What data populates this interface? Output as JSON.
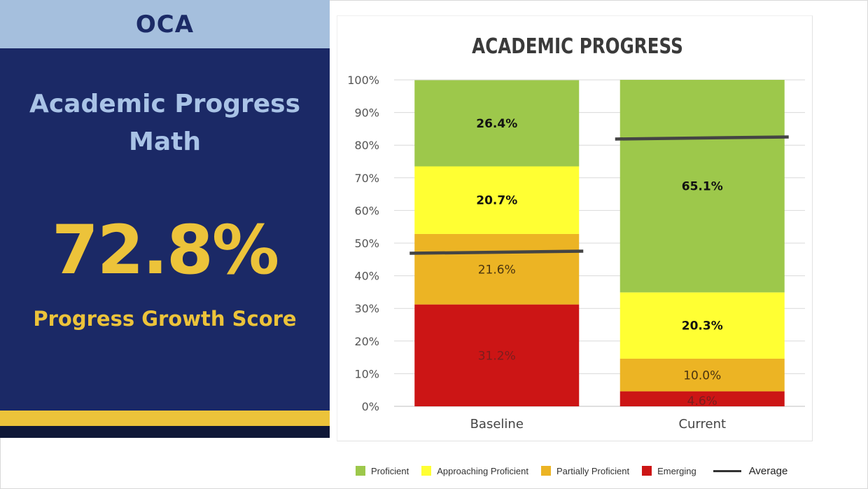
{
  "left_panel": {
    "school": "OCA",
    "title_line1": "Academic Progress",
    "title_line2": "Math",
    "score": "72.8%",
    "score_label": "Progress Growth Score"
  },
  "colors": {
    "Proficient": "#9dc84b",
    "Approaching Proficient": "#ffff33",
    "Partially Proficient": "#ecb424",
    "Emerging": "#cc1515",
    "Average": "#444444",
    "navy": "#1b2966",
    "gold": "#ecc33a"
  },
  "chart_data": {
    "type": "bar",
    "stacked": true,
    "title": "ACADEMIC PROGRESS",
    "categories": [
      "Baseline",
      "Current"
    ],
    "series": [
      {
        "name": "Emerging",
        "values": [
          31.2,
          4.6
        ],
        "labels": [
          "31.2%",
          "4.6%"
        ]
      },
      {
        "name": "Partially Proficient",
        "values": [
          21.6,
          10.0
        ],
        "labels": [
          "21.6%",
          "10.0%"
        ]
      },
      {
        "name": "Approaching Proficient",
        "values": [
          20.7,
          20.3
        ],
        "labels": [
          "20.7%",
          "20.3%"
        ]
      },
      {
        "name": "Proficient",
        "values": [
          26.4,
          65.1
        ],
        "labels": [
          "26.4%",
          "65.1%"
        ]
      }
    ],
    "average": {
      "name": "Average",
      "values": [
        47.2,
        82.2
      ]
    },
    "ylim": [
      0,
      100
    ],
    "yticks": [
      "0%",
      "10%",
      "20%",
      "30%",
      "40%",
      "50%",
      "60%",
      "70%",
      "80%",
      "90%",
      "100%"
    ],
    "grid": true,
    "legend_position": "bottom",
    "legend": [
      "Proficient",
      "Approaching Proficient",
      "Partially Proficient",
      "Emerging",
      "Average"
    ]
  }
}
